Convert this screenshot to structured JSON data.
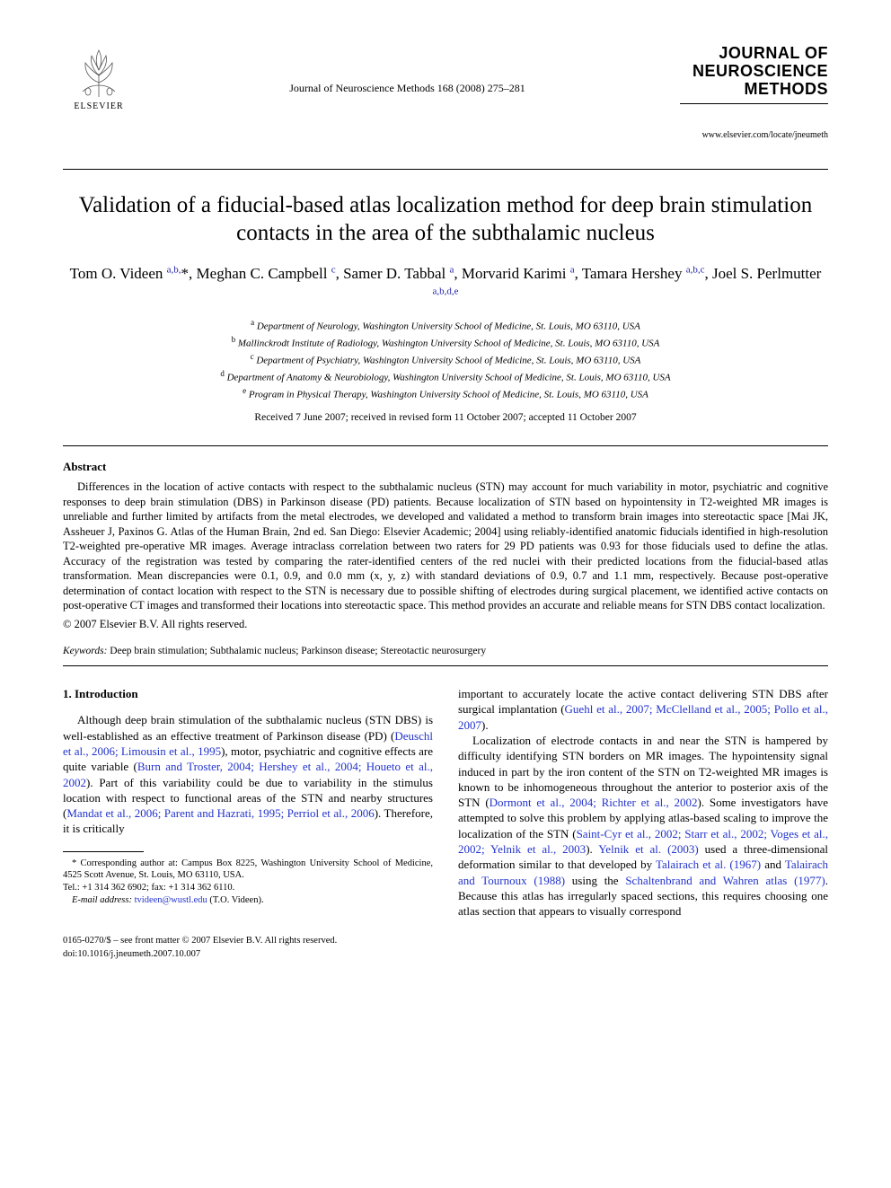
{
  "header": {
    "publisher_name": "ELSEVIER",
    "journal_ref": "Journal of Neuroscience Methods  168 (2008) 275–281",
    "journal_title_l1": "JOURNAL OF",
    "journal_title_l2": "NEUROSCIENCE",
    "journal_title_l3": "METHODS",
    "journal_url": "www.elsevier.com/locate/jneumeth"
  },
  "title": "Validation of a fiducial-based atlas localization method for deep brain stimulation contacts in the area of the subthalamic nucleus",
  "authors_html": "Tom O. Videen <sup>a,b,</sup><span class='star'>*</span>, Meghan C. Campbell <sup>c</sup>, Samer D. Tabbal <sup>a</sup>, Morvarid Karimi <sup>a</sup>, Tamara Hershey <sup>a,b,c</sup>, Joel S. Perlmutter <sup>a,b,d,e</sup>",
  "affiliations": [
    {
      "key": "a",
      "text": "Department of Neurology, Washington University School of Medicine, St. Louis, MO 63110, USA"
    },
    {
      "key": "b",
      "text": "Mallinckrodt Institute of Radiology, Washington University School of Medicine, St. Louis, MO 63110, USA"
    },
    {
      "key": "c",
      "text": "Department of Psychiatry, Washington University School of Medicine, St. Louis, MO 63110, USA"
    },
    {
      "key": "d",
      "text": "Department of Anatomy & Neurobiology, Washington University School of Medicine, St. Louis, MO 63110, USA"
    },
    {
      "key": "e",
      "text": "Program in Physical Therapy, Washington University School of Medicine, St. Louis, MO 63110, USA"
    }
  ],
  "dates": "Received 7 June 2007; received in revised form 11 October 2007; accepted 11 October 2007",
  "abstract": {
    "heading": "Abstract",
    "text": "Differences in the location of active contacts with respect to the subthalamic nucleus (STN) may account for much variability in motor, psychiatric and cognitive responses to deep brain stimulation (DBS) in Parkinson disease (PD) patients. Because localization of STN based on hypointensity in T2-weighted MR images is unreliable and further limited by artifacts from the metal electrodes, we developed and validated a method to transform brain images into stereotactic space [Mai JK, Assheuer J, Paxinos G. Atlas of the Human Brain, 2nd ed. San Diego: Elsevier Academic; 2004] using reliably-identified anatomic fiducials identified in high-resolution T2-weighted pre-operative MR images. Average intraclass correlation between two raters for 29 PD patients was 0.93 for those fiducials used to define the atlas. Accuracy of the registration was tested by comparing the rater-identified centers of the red nuclei with their predicted locations from the fiducial-based atlas transformation. Mean discrepancies were 0.1, 0.9, and 0.0 mm (x, y, z) with standard deviations of 0.9, 0.7 and 1.1 mm, respectively. Because post-operative determination of contact location with respect to the STN is necessary due to possible shifting of electrodes during surgical placement, we identified active contacts on post-operative CT images and transformed their locations into stereotactic space. This method provides an accurate and reliable means for STN DBS contact localization.",
    "copyright": "© 2007 Elsevier B.V. All rights reserved."
  },
  "keywords": {
    "label": "Keywords:",
    "text": " Deep brain stimulation; Subthalamic nucleus; Parkinson disease; Stereotactic neurosurgery"
  },
  "intro": {
    "heading": "1.  Introduction",
    "left_p1_a": "Although deep brain stimulation of the subthalamic nucleus (STN DBS) is well-established as an effective treatment of Parkinson disease (PD) (",
    "left_ref1": "Deuschl et al., 2006; Limousin et al., 1995",
    "left_p1_b": "), motor, psychiatric and cognitive effects are quite variable (",
    "left_ref2": "Burn and Troster, 2004; Hershey et al., 2004; Houeto et al., 2002",
    "left_p1_c": "). Part of this variability could be due to variability in the stimulus location with respect to functional areas of the STN and nearby structures (",
    "left_ref3": "Mandat et al., 2006; Parent and Hazrati, 1995; Perriol et al., 2006",
    "left_p1_d": "). Therefore, it is critically",
    "right_p1_a": "important to accurately locate the active contact delivering STN DBS after surgical implantation (",
    "right_ref1": "Guehl et al., 2007; McClelland et al., 2005; Pollo et al., 2007",
    "right_p1_b": ").",
    "right_p2_a": "Localization of electrode contacts in and near the STN is hampered by difficulty identifying STN borders on MR images. The hypointensity signal induced in part by the iron content of the STN on T2-weighted MR images is known to be inhomogeneous throughout the anterior to posterior axis of the STN (",
    "right_ref2": "Dormont et al., 2004; Richter et al., 2002",
    "right_p2_b": "). Some investigators have attempted to solve this problem by applying atlas-based scaling to improve the localization of the STN (",
    "right_ref3": "Saint-Cyr et al., 2002; Starr et al., 2002; Voges et al., 2002; Yelnik et al., 2003",
    "right_p2_c": "). ",
    "right_ref4": "Yelnik et al. (2003)",
    "right_p2_d": " used a three-dimensional deformation similar to that developed by ",
    "right_ref5": "Talairach et al. (1967)",
    "right_p2_e": " and ",
    "right_ref6": "Talairach and Tournoux (1988)",
    "right_p2_f": " using the ",
    "right_ref7": "Schaltenbrand and Wahren atlas (1977)",
    "right_p2_g": ". Because this atlas has irregularly spaced sections, this requires choosing one atlas section that appears to visually correspond"
  },
  "footnote": {
    "corr": "* Corresponding author at: Campus Box 8225, Washington University School of Medicine, 4525 Scott Avenue, St. Louis, MO 63110, USA.",
    "tel": "Tel.: +1 314 362 6902; fax: +1 314 362 6110.",
    "email_label": "E-mail address:",
    "email": "tvideen@wustl.edu",
    "email_who": "(T.O. Videen)."
  },
  "footer": {
    "issn_line": "0165-0270/$ – see front matter © 2007 Elsevier B.V. All rights reserved.",
    "doi_line": "doi:10.1016/j.jneumeth.2007.10.007"
  },
  "colors": {
    "link": "#2233cc",
    "text": "#000000",
    "bg": "#ffffff"
  }
}
